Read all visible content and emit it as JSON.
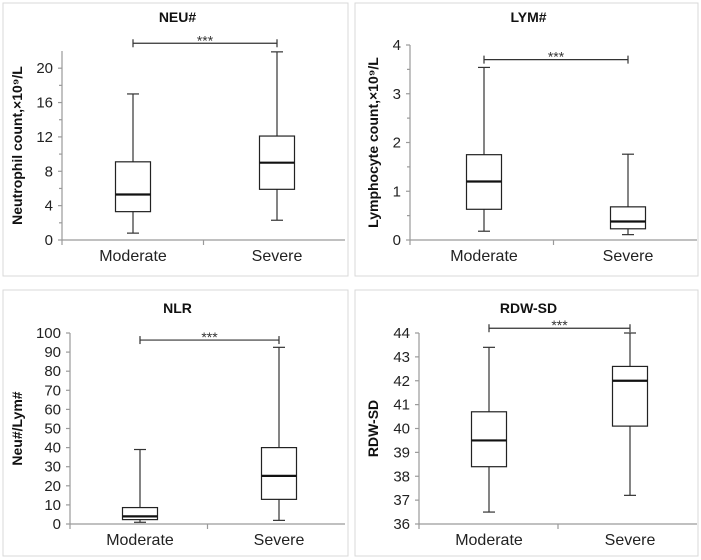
{
  "chart_data": [
    {
      "type": "box",
      "title": "NEU#",
      "ylabel": "Neutrophil count,×10⁹/L",
      "categories": [
        "Moderate",
        "Severe"
      ],
      "ylim": [
        0,
        22
      ],
      "yticks": [
        0,
        4,
        8,
        12,
        16,
        20
      ],
      "grid": false,
      "series": [
        {
          "category": "Moderate",
          "min": 0.8,
          "q1": 3.3,
          "median": 5.3,
          "q3": 9.1,
          "max": 17.0
        },
        {
          "category": "Severe",
          "min": 2.3,
          "q1": 5.9,
          "median": 9.0,
          "q3": 12.1,
          "max": 21.9
        }
      ],
      "significance": {
        "label": "***",
        "y": 22.9
      }
    },
    {
      "type": "box",
      "title": "LYM#",
      "ylabel": "Lymphocyte count,×10⁹/L",
      "categories": [
        "Moderate",
        "Severe"
      ],
      "ylim": [
        0,
        4
      ],
      "yticks": [
        0,
        1,
        2,
        3,
        4
      ],
      "grid": false,
      "series": [
        {
          "category": "Moderate",
          "min": 0.18,
          "q1": 0.63,
          "median": 1.2,
          "q3": 1.75,
          "max": 3.54
        },
        {
          "category": "Severe",
          "min": 0.11,
          "q1": 0.23,
          "median": 0.38,
          "q3": 0.68,
          "max": 1.76
        }
      ],
      "significance": {
        "label": "***",
        "y": 3.7
      }
    },
    {
      "type": "box",
      "title": "NLR",
      "ylabel": "Neu#/Lym#",
      "categories": [
        "Moderate",
        "Severe"
      ],
      "ylim": [
        0,
        100
      ],
      "yticks": [
        0,
        10,
        20,
        30,
        40,
        50,
        60,
        70,
        80,
        90,
        100
      ],
      "grid": false,
      "series": [
        {
          "category": "Moderate",
          "min": 0.9,
          "q1": 2.3,
          "median": 4.0,
          "q3": 8.6,
          "max": 39.0
        },
        {
          "category": "Severe",
          "min": 1.9,
          "q1": 12.9,
          "median": 25.2,
          "q3": 40.0,
          "max": 92.5
        }
      ],
      "significance": {
        "label": "***",
        "y": 96.3
      }
    },
    {
      "type": "box",
      "title": "RDW-SD",
      "ylabel": "RDW-SD",
      "categories": [
        "Moderate",
        "Severe"
      ],
      "ylim": [
        36,
        44
      ],
      "yticks": [
        36,
        37,
        38,
        39,
        40,
        41,
        42,
        43,
        44
      ],
      "grid": false,
      "series": [
        {
          "category": "Moderate",
          "min": 36.5,
          "q1": 38.4,
          "median": 39.5,
          "q3": 40.7,
          "max": 43.4
        },
        {
          "category": "Severe",
          "min": 37.2,
          "q1": 40.1,
          "median": 42.0,
          "q3": 42.6,
          "max": 44.0
        }
      ],
      "significance": {
        "label": "***",
        "y": 44.2
      }
    }
  ]
}
